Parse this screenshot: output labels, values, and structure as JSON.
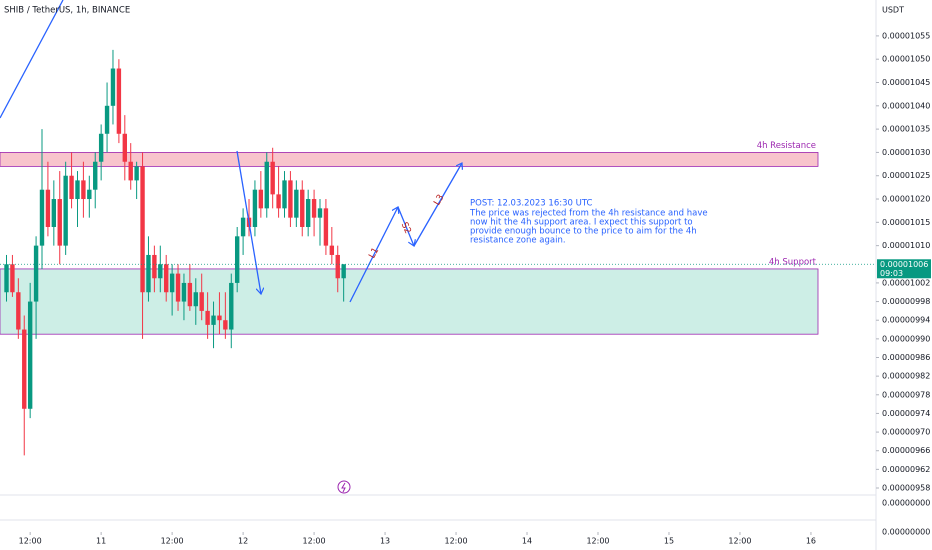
{
  "chart_data": {
    "type": "candlestick",
    "title": "SHIB / TetherUS, 1h, BINANCE",
    "currency": "USDT",
    "x": [
      8,
      9,
      10,
      11,
      12,
      13,
      14,
      15,
      16,
      17,
      18,
      19,
      20,
      21,
      22,
      23,
      24,
      25,
      26,
      27,
      28,
      29,
      30,
      31,
      32,
      33,
      34,
      35,
      36,
      37,
      38,
      39,
      40,
      41,
      42,
      43,
      44,
      45,
      46,
      47,
      48,
      49,
      50,
      51,
      52,
      53,
      54,
      55,
      56,
      57,
      58,
      59,
      60,
      61,
      62,
      63,
      64,
      65
    ],
    "open": [
      1e-05,
      1.006e-05,
      1e-05,
      9.92e-06,
      9.75e-06,
      9.98e-06,
      1.01e-05,
      1.022e-05,
      1.014e-05,
      1.02e-05,
      1.01e-05,
      1.025e-05,
      1.02e-05,
      1.024e-05,
      1.02e-05,
      1.022e-05,
      1.028e-05,
      1.034e-05,
      1.04e-05,
      1.048e-05,
      1.034e-05,
      1.028e-05,
      1.024e-05,
      1.027e-05,
      1e-05,
      1.008e-05,
      1.003e-05,
      1.006e-05,
      1e-05,
      1.004e-05,
      9.98e-06,
      1.002e-05,
      9.97e-06,
      1e-05,
      9.96e-06,
      9.93e-06,
      9.95e-06,
      9.94e-06,
      9.92e-06,
      1.002e-05,
      1.012e-05,
      1.016e-05,
      1.014e-05,
      1.022e-05,
      1.018e-05,
      1.028e-05,
      1.021e-05,
      1.018e-05,
      1.024e-05,
      1.016e-05,
      1.022e-05,
      1.014e-05,
      1.02e-05,
      1.016e-05,
      1.018e-05,
      1.01e-05,
      1.008e-05,
      1.003e-05
    ],
    "high": [
      1.008e-05,
      1.008e-05,
      1.003e-05,
      9.95e-06,
      1.002e-05,
      1.012e-05,
      1.035e-05,
      1.028e-05,
      1.024e-05,
      1.026e-05,
      1.028e-05,
      1.03e-05,
      1.026e-05,
      1.028e-05,
      1.025e-05,
      1.03e-05,
      1.036e-05,
      1.045e-05,
      1.052e-05,
      1.05e-05,
      1.038e-05,
      1.032e-05,
      1.028e-05,
      1.03e-05,
      1.012e-05,
      1.01e-05,
      1.01e-05,
      1.008e-05,
      1.006e-05,
      1.006e-05,
      1.004e-05,
      1.006e-05,
      1.003e-05,
      1.004e-05,
      1e-05,
      9.98e-06,
      1e-05,
      1e-05,
      1.004e-05,
      1.014e-05,
      1.018e-05,
      1.02e-05,
      1.024e-05,
      1.026e-05,
      1.03e-05,
      1.031e-05,
      1.027e-05,
      1.026e-05,
      1.026e-05,
      1.024e-05,
      1.024e-05,
      1.022e-05,
      1.022e-05,
      1.02e-05,
      1.02e-05,
      1.014e-05,
      1.01e-05,
      1.006e-05
    ],
    "low": [
      9.98e-06,
      9.99e-06,
      9.9e-06,
      9.65e-06,
      9.73e-06,
      9.9e-06,
      1.005e-05,
      1.012e-05,
      1.01e-05,
      1.006e-05,
      1.008e-05,
      1.018e-05,
      1.014e-05,
      1.016e-05,
      1.016e-05,
      1.018e-05,
      1.024e-05,
      1.03e-05,
      1.036e-05,
      1.032e-05,
      1.024e-05,
      1.022e-05,
      1.02e-05,
      9.9e-06,
      9.98e-06,
      1e-05,
      1e-05,
      9.98e-06,
      9.95e-06,
      9.96e-06,
      9.94e-06,
      9.96e-06,
      9.93e-06,
      9.94e-06,
      9.9e-06,
      9.88e-06,
      9.91e-06,
      9.9e-06,
      9.88e-06,
      1e-05,
      1.008e-05,
      1.012e-05,
      1.012e-05,
      1.016e-05,
      1.016e-05,
      1.018e-05,
      1.016e-05,
      1.016e-05,
      1.014e-05,
      1.014e-05,
      1.012e-05,
      1.012e-05,
      1.012e-05,
      1.01e-05,
      1.008e-05,
      1.006e-05,
      1e-05,
      9.98e-06
    ],
    "close": [
      1.006e-05,
      1e-05,
      9.92e-06,
      9.75e-06,
      9.98e-06,
      1.01e-05,
      1.022e-05,
      1.014e-05,
      1.02e-05,
      1.01e-05,
      1.025e-05,
      1.02e-05,
      1.024e-05,
      1.02e-05,
      1.022e-05,
      1.028e-05,
      1.034e-05,
      1.04e-05,
      1.048e-05,
      1.034e-05,
      1.028e-05,
      1.024e-05,
      1.027e-05,
      1e-05,
      1.008e-05,
      1.003e-05,
      1.006e-05,
      1e-05,
      1.004e-05,
      9.98e-06,
      1.002e-05,
      9.97e-06,
      1e-05,
      9.96e-06,
      9.93e-06,
      9.95e-06,
      9.94e-06,
      9.92e-06,
      1.002e-05,
      1.012e-05,
      1.016e-05,
      1.014e-05,
      1.022e-05,
      1.018e-05,
      1.028e-05,
      1.021e-05,
      1.018e-05,
      1.024e-05,
      1.016e-05,
      1.022e-05,
      1.014e-05,
      1.02e-05,
      1.016e-05,
      1.018e-05,
      1.01e-05,
      1.008e-05,
      1.003e-05,
      1.006e-05
    ],
    "up_color": "#089981",
    "down_color": "#f23645",
    "xlim": [
      6.9,
      155
    ],
    "xticks": [
      {
        "value": 12,
        "label": "12:00"
      },
      {
        "value": 24,
        "label": "11"
      },
      {
        "value": 36,
        "label": "12:00"
      },
      {
        "value": 48,
        "label": "12"
      },
      {
        "value": 60,
        "label": "12:00"
      },
      {
        "value": 72,
        "label": "13"
      },
      {
        "value": 84,
        "label": "12:00"
      },
      {
        "value": 96,
        "label": "14"
      },
      {
        "value": 108,
        "label": "12:00"
      },
      {
        "value": 120,
        "label": "15"
      },
      {
        "value": 132,
        "label": "12:00"
      },
      {
        "value": 144,
        "label": "16"
      }
    ],
    "ylim": [
      9.565e-06,
      1.0627e-05
    ],
    "yticks": [
      {
        "value": 1.055e-05,
        "label": "0.00001055"
      },
      {
        "value": 1.05e-05,
        "label": "0.00001050"
      },
      {
        "value": 1.045e-05,
        "label": "0.00001045"
      },
      {
        "value": 1.04e-05,
        "label": "0.00001040"
      },
      {
        "value": 1.035e-05,
        "label": "0.00001035"
      },
      {
        "value": 1.03e-05,
        "label": "0.00001030"
      },
      {
        "value": 1.025e-05,
        "label": "0.00001025"
      },
      {
        "value": 1.02e-05,
        "label": "0.00001020"
      },
      {
        "value": 1.015e-05,
        "label": "0.00001015"
      },
      {
        "value": 1.01e-05,
        "label": "0.00001010"
      },
      {
        "value": 1.002e-05,
        "label": "0.00001002"
      },
      {
        "value": 9.98e-06,
        "label": "0.00000998"
      },
      {
        "value": 9.94e-06,
        "label": "0.00000994"
      },
      {
        "value": 9.9e-06,
        "label": "0.00000990"
      },
      {
        "value": 9.86e-06,
        "label": "0.00000986"
      },
      {
        "value": 9.82e-06,
        "label": "0.00000982"
      },
      {
        "value": 9.78e-06,
        "label": "0.00000978"
      },
      {
        "value": 9.74e-06,
        "label": "0.00000974"
      },
      {
        "value": 9.7e-06,
        "label": "0.00000970"
      },
      {
        "value": 9.66e-06,
        "label": "0.00000966"
      },
      {
        "value": 9.62e-06,
        "label": "0.00000962"
      },
      {
        "value": 9.58e-06,
        "label": "0.00000958"
      }
    ],
    "grid": false,
    "zones": [
      {
        "label": "4h Resistance",
        "top": 1.03e-05,
        "bottom": 1.027e-05,
        "color": "#f8c4cc"
      },
      {
        "label": "4h Support",
        "top": 1.005e-05,
        "bottom": 9.91e-06,
        "color": "#cdeee6"
      }
    ],
    "last_price": {
      "value": 1.006e-05,
      "label": "0.00001006"
    },
    "countdown": "09:03",
    "lower_pane_labels": [
      "0.00000000",
      "0.00000000"
    ],
    "wave_labels": [
      "L1",
      "S2",
      "L3"
    ],
    "annotation": [
      "POST: 12.03.2023 16:30 UTC",
      "The price was rejected from the 4h resistance and have",
      "now hit the 4h support area. I expect this support to",
      "provide enough bounce to the price to aim for the 4h",
      "resistance zone again."
    ]
  }
}
